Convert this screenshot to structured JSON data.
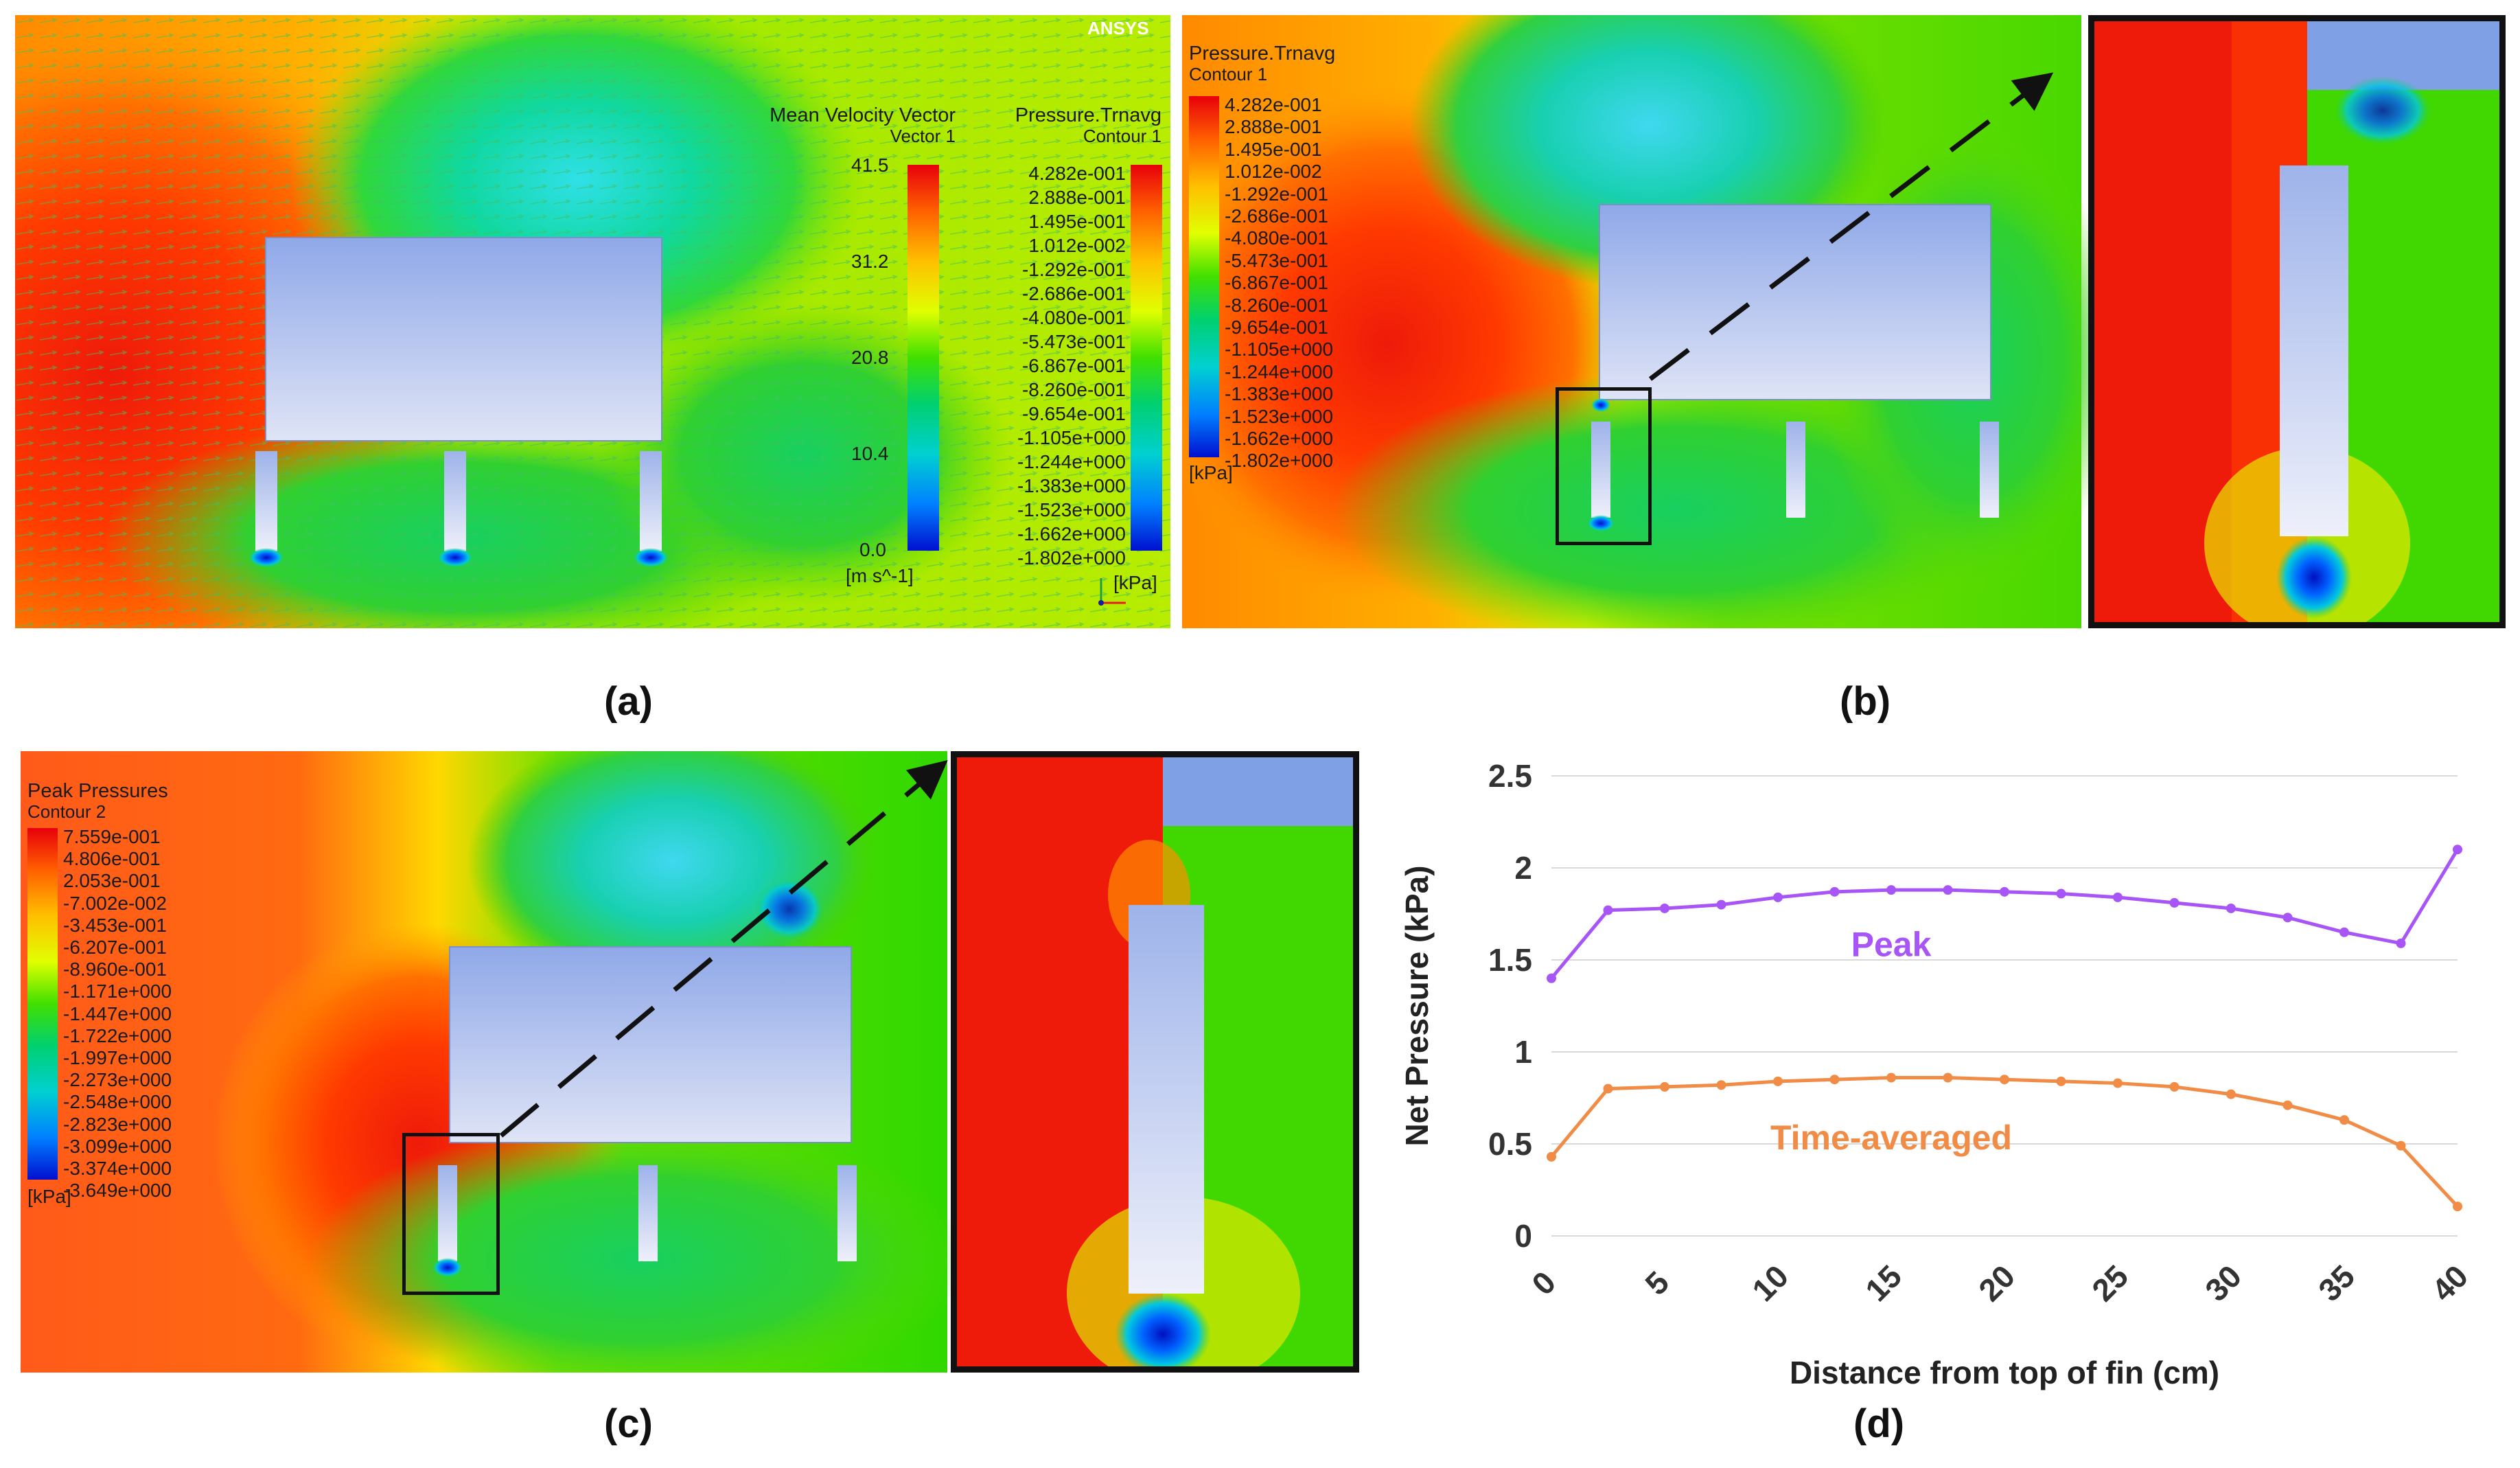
{
  "captions": {
    "a": "(a)",
    "b": "(b)",
    "c": "(c)",
    "d": "(d)"
  },
  "panel_a": {
    "velocity_legend": {
      "title": "Mean Velocity Vector",
      "subtitle": "Vector 1",
      "ticks": [
        "41.5",
        "31.2",
        "20.8",
        "10.4",
        "0.0"
      ],
      "unit": "[m s^-1]"
    },
    "pressure_legend": {
      "title": "Pressure.Trnavg",
      "subtitle": "Contour 1",
      "ticks": [
        "4.282e-001",
        "2.888e-001",
        "1.495e-001",
        "1.012e-002",
        "-1.292e-001",
        "-2.686e-001",
        "-4.080e-001",
        "-5.473e-001",
        "-6.867e-001",
        "-8.260e-001",
        "-9.654e-001",
        "-1.105e+000",
        "-1.244e+000",
        "-1.383e+000",
        "-1.523e+000",
        "-1.662e+000",
        "-1.802e+000"
      ],
      "unit": "[kPa]"
    },
    "logo": "ANSYS"
  },
  "panel_b": {
    "legend": {
      "title": "Pressure.Trnavg",
      "subtitle": "Contour 1",
      "ticks": [
        "4.282e-001",
        "2.888e-001",
        "1.495e-001",
        "1.012e-002",
        "-1.292e-001",
        "-2.686e-001",
        "-4.080e-001",
        "-5.473e-001",
        "-6.867e-001",
        "-8.260e-001",
        "-9.654e-001",
        "-1.105e+000",
        "-1.244e+000",
        "-1.383e+000",
        "-1.523e+000",
        "-1.662e+000",
        "-1.802e+000"
      ],
      "unit": "[kPa]"
    }
  },
  "panel_c": {
    "legend": {
      "title": "Peak Pressures",
      "subtitle": "Contour 2",
      "ticks": [
        "7.559e-001",
        "4.806e-001",
        "2.053e-001",
        "-7.002e-002",
        "-3.453e-001",
        "-6.207e-001",
        "-8.960e-001",
        "-1.171e+000",
        "-1.447e+000",
        "-1.722e+000",
        "-1.997e+000",
        "-2.273e+000",
        "-2.548e+000",
        "-2.823e+000",
        "-3.099e+000",
        "-3.374e+000",
        "-3.649e+000"
      ],
      "unit": "[kPa]"
    }
  },
  "colors": {
    "rainbow": [
      "#e8000b",
      "#ff4000",
      "#ff8000",
      "#ffc000",
      "#ffff00",
      "#c0ff00",
      "#60e000",
      "#20d020",
      "#00d060",
      "#00d0a0",
      "#00c8e0",
      "#0090ff",
      "#0040ff",
      "#0000e0"
    ],
    "peak_series": "#a855f7",
    "avg_series": "#f08c46"
  },
  "chart_data": {
    "type": "line",
    "title": "",
    "xlabel": "Distance from top of fin (cm)",
    "ylabel": "Net Pressure (kPa)",
    "xlim": [
      0,
      40
    ],
    "ylim": [
      0,
      2.5
    ],
    "xticks": [
      0,
      5,
      10,
      15,
      20,
      25,
      30,
      35,
      40
    ],
    "yticks": [
      0,
      0.5,
      1,
      1.5,
      2,
      2.5
    ],
    "ytick_labels": [
      "0",
      "0.5",
      "1",
      "1.5",
      "2",
      "2.5"
    ],
    "grid": true,
    "series": [
      {
        "name": "Peak",
        "x": [
          0,
          2.5,
          5,
          7.5,
          10,
          12.5,
          15,
          17.5,
          20,
          22.5,
          25,
          27.5,
          30,
          32.5,
          35,
          37.5,
          40
        ],
        "values": [
          1.4,
          1.77,
          1.78,
          1.8,
          1.84,
          1.87,
          1.88,
          1.88,
          1.87,
          1.86,
          1.84,
          1.81,
          1.78,
          1.73,
          1.65,
          1.59,
          2.1
        ]
      },
      {
        "name": "Time-averaged",
        "x": [
          0,
          2.5,
          5,
          7.5,
          10,
          12.5,
          15,
          17.5,
          20,
          22.5,
          25,
          27.5,
          30,
          32.5,
          35,
          37.5,
          40
        ],
        "values": [
          0.43,
          0.8,
          0.81,
          0.82,
          0.84,
          0.85,
          0.86,
          0.86,
          0.85,
          0.84,
          0.83,
          0.81,
          0.77,
          0.71,
          0.63,
          0.49,
          0.16
        ]
      }
    ]
  }
}
